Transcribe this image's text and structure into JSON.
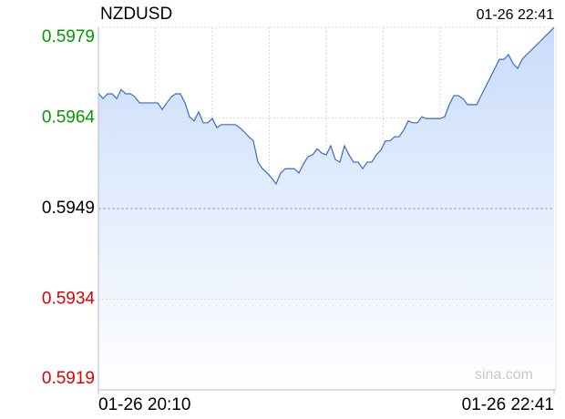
{
  "chart_data": {
    "type": "area",
    "title": "NZDUSD",
    "timestamp": "01-26 22:41",
    "watermark": "sina.com",
    "categories": [
      "01-26 20:10",
      null,
      null,
      null,
      null,
      null,
      null,
      null,
      null,
      null,
      null,
      null,
      null,
      null,
      null,
      null,
      null,
      null,
      null,
      null,
      null,
      null,
      null,
      null,
      null,
      null,
      null,
      null,
      null,
      null,
      null,
      null,
      null,
      null,
      null,
      null,
      null,
      null,
      null,
      null,
      null,
      null,
      null,
      null,
      null,
      null,
      null,
      null,
      null,
      null,
      null,
      null,
      null,
      null,
      null,
      null,
      null,
      null,
      null,
      null,
      null,
      null,
      null,
      null,
      null,
      null,
      null,
      null,
      null,
      null,
      null,
      null,
      null,
      null,
      null,
      null,
      null,
      null,
      null,
      null,
      null,
      null,
      null,
      null,
      null,
      null,
      null,
      null,
      null,
      null,
      null,
      null,
      null,
      null,
      null,
      null,
      null,
      null,
      null,
      null,
      "01-26 22:41"
    ],
    "values": [
      0.59681,
      0.59672,
      0.5968,
      0.5968,
      0.59672,
      0.59687,
      0.5968,
      0.5968,
      0.59675,
      0.59665,
      0.59665,
      0.59665,
      0.59665,
      0.59665,
      0.59654,
      0.59665,
      0.59675,
      0.5968,
      0.5968,
      0.59665,
      0.59642,
      0.59635,
      0.5965,
      0.59632,
      0.59632,
      0.59639,
      0.59624,
      0.59629,
      0.59629,
      0.59629,
      0.59629,
      0.59624,
      0.59617,
      0.59609,
      0.59602,
      0.59567,
      0.59556,
      0.59549,
      0.59541,
      0.59531,
      0.59549,
      0.59556,
      0.59556,
      0.59556,
      0.59549,
      0.59564,
      0.59576,
      0.59579,
      0.59589,
      0.59582,
      0.59579,
      0.59594,
      0.59571,
      0.59567,
      0.59594,
      0.59579,
      0.59567,
      0.59567,
      0.59556,
      0.59567,
      0.59567,
      0.59579,
      0.59587,
      0.59602,
      0.59602,
      0.59609,
      0.59609,
      0.5962,
      0.59635,
      0.59632,
      0.59632,
      0.59642,
      0.59639,
      0.59639,
      0.59639,
      0.59639,
      0.59642,
      0.59662,
      0.59677,
      0.59677,
      0.59672,
      0.59662,
      0.59662,
      0.59662,
      0.59677,
      0.59692,
      0.59707,
      0.59722,
      0.59737,
      0.59737,
      0.59745,
      0.5973,
      0.59722,
      0.59737,
      0.59745,
      0.59752,
      0.5976,
      0.59767,
      0.59775,
      0.59782,
      0.5979
    ],
    "color": "#3a6bc4",
    "fill_color": "#c9dcfb",
    "ylim": [
      0.5919,
      0.5979
    ],
    "yticks": [
      0.5979,
      0.5964,
      0.5949,
      0.5934,
      0.5919
    ],
    "base": 0.5949,
    "up_color": "#009900",
    "down_color": "#dd0000",
    "flat_color": "#000000",
    "grid": true
  }
}
